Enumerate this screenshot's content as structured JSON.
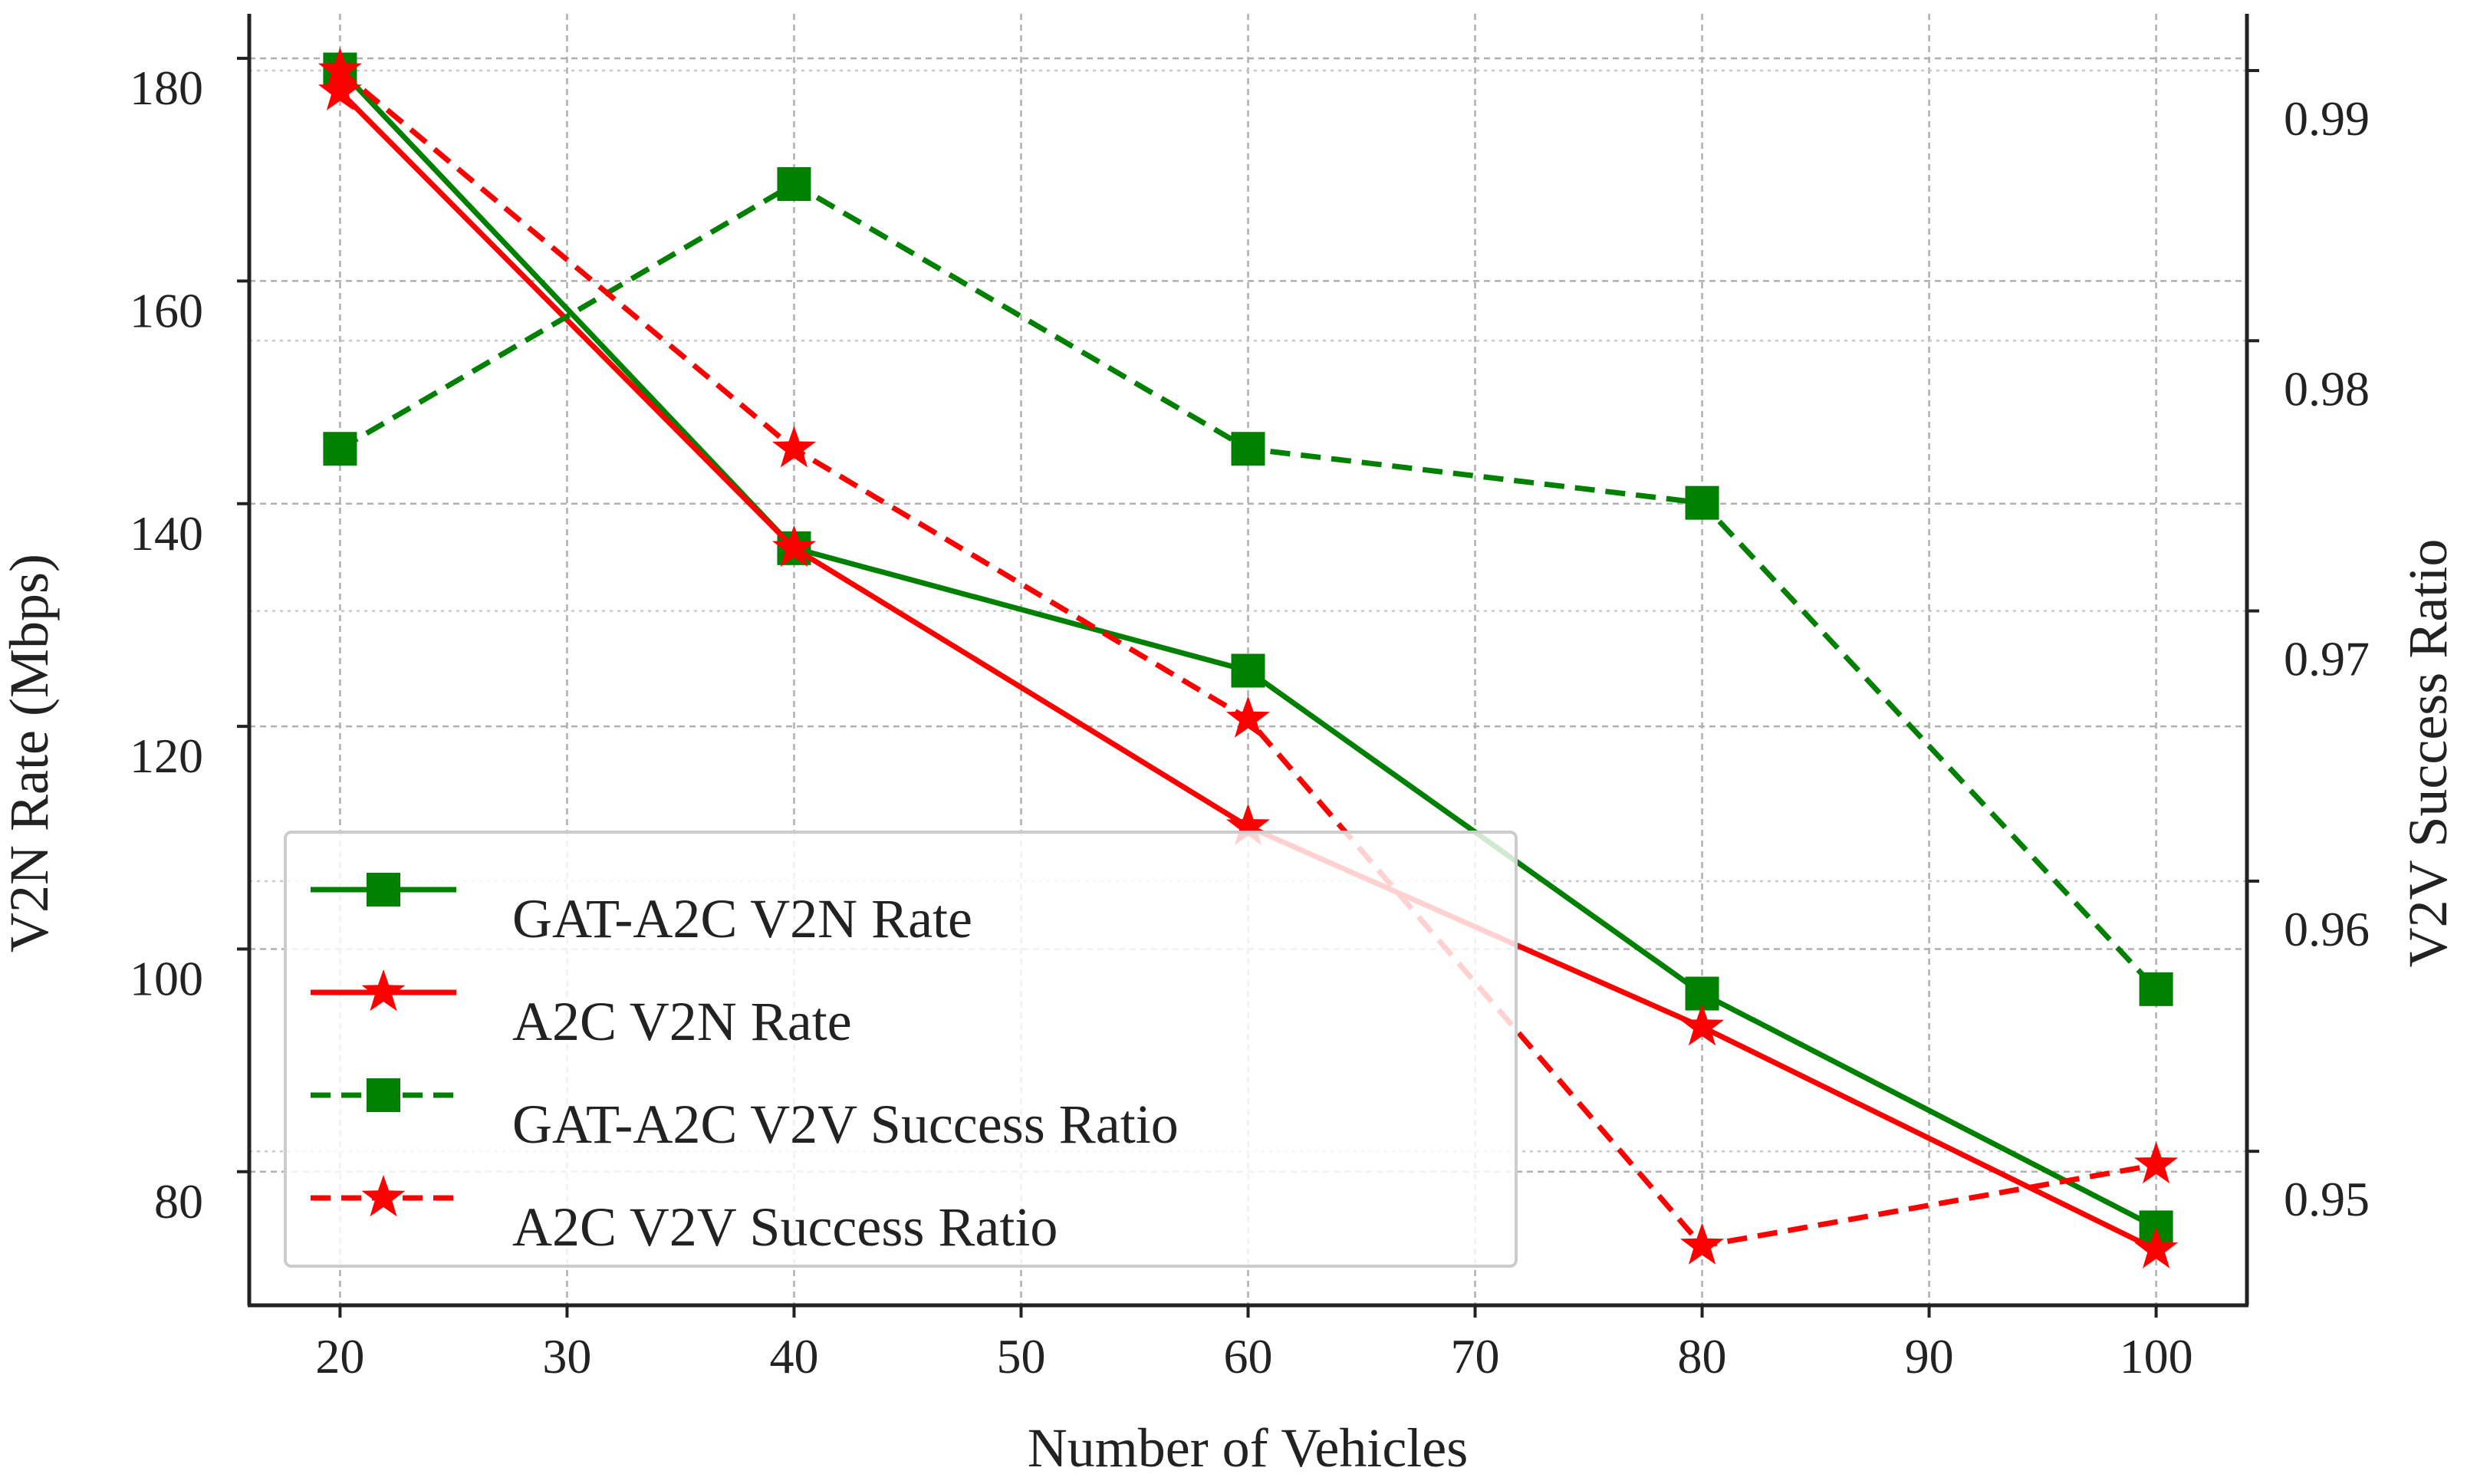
{
  "chart_data": {
    "type": "line",
    "title": "",
    "xlabel": "Number of Vehicles",
    "ylabel_left": "V2N Rate (Mbps)",
    "ylabel_right": "V2V Success Ratio",
    "x": [
      20,
      40,
      60,
      80,
      100
    ],
    "xlim": [
      16,
      104
    ],
    "xticks": [
      20,
      30,
      40,
      50,
      60,
      70,
      80,
      90,
      100
    ],
    "ylim_left": [
      68,
      184
    ],
    "yticks_left": [
      80,
      100,
      120,
      140,
      160,
      180
    ],
    "ylim_right": [
      0.9443,
      0.9921
    ],
    "yticks_right": [
      0.95,
      0.96,
      0.97,
      0.98,
      0.99
    ],
    "yticks_right_labels": [
      "0.95",
      "0.96",
      "0.97",
      "0.98",
      "0.99"
    ],
    "grid": true,
    "legend_position": "lower-left",
    "series": [
      {
        "name": "GAT-A2C V2N Rate",
        "axis": "left",
        "color": "#008000",
        "marker": "square",
        "linestyle": "solid",
        "values": [
          179,
          136,
          125,
          96,
          75
        ]
      },
      {
        "name": "A2C V2N Rate",
        "axis": "left",
        "color": "#ff0000",
        "marker": "star",
        "linestyle": "solid",
        "values": [
          177,
          136,
          111,
          93,
          73
        ]
      },
      {
        "name": "GAT-A2C V2V Success Ratio",
        "axis": "right",
        "color": "#008000",
        "marker": "square",
        "linestyle": "dashed",
        "values": [
          0.976,
          0.9858,
          0.976,
          0.974,
          0.956
        ]
      },
      {
        "name": "A2C V2V Success Ratio",
        "axis": "right",
        "color": "#ff0000",
        "marker": "star",
        "linestyle": "dashed",
        "values": [
          0.99,
          0.976,
          0.966,
          0.9465,
          0.9495
        ]
      }
    ]
  }
}
